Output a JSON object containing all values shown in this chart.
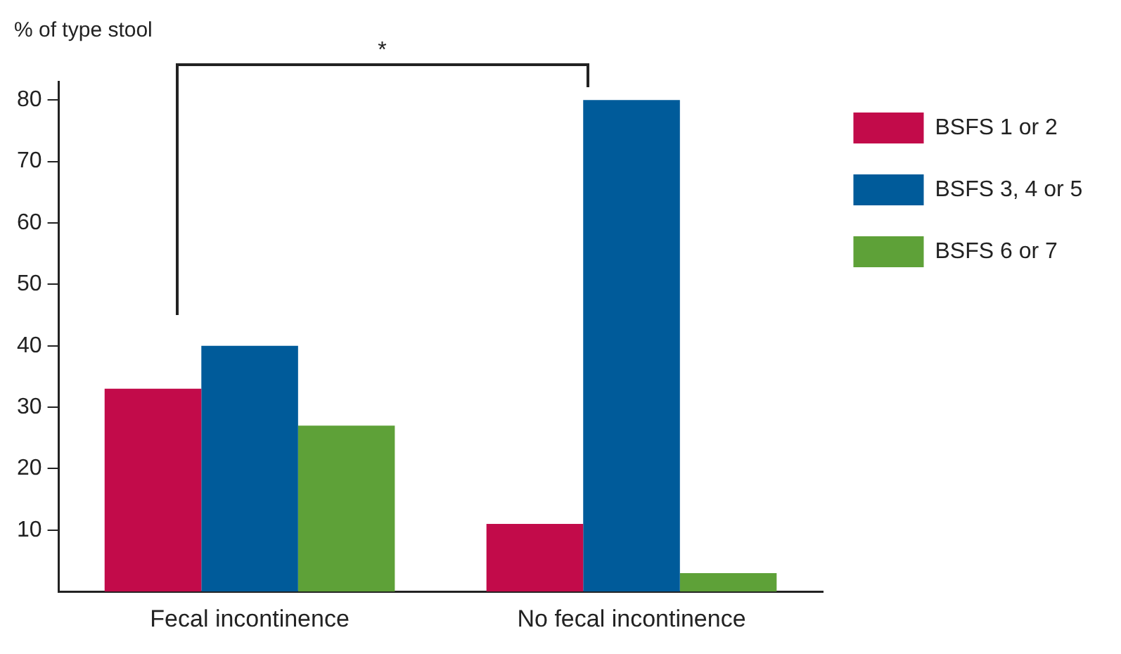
{
  "chart_data": {
    "type": "bar",
    "ylabel": "% of type stool",
    "categories": [
      "Fecal incontinence",
      "No fecal incontinence"
    ],
    "series": [
      {
        "name": "BSFS 1 or 2",
        "color": "#c20b4a",
        "values": [
          33,
          11
        ]
      },
      {
        "name": "BSFS 3, 4 or 5",
        "color": "#005b9a",
        "values": [
          40,
          80
        ]
      },
      {
        "name": "BSFS 6 or 7",
        "color": "#5ea138",
        "values": [
          27,
          3
        ]
      }
    ],
    "ylim": [
      0,
      83
    ],
    "yticks": [
      10,
      20,
      30,
      40,
      50,
      60,
      70,
      80
    ],
    "grid": false,
    "legend": "right",
    "annotations": [
      "*"
    ]
  }
}
